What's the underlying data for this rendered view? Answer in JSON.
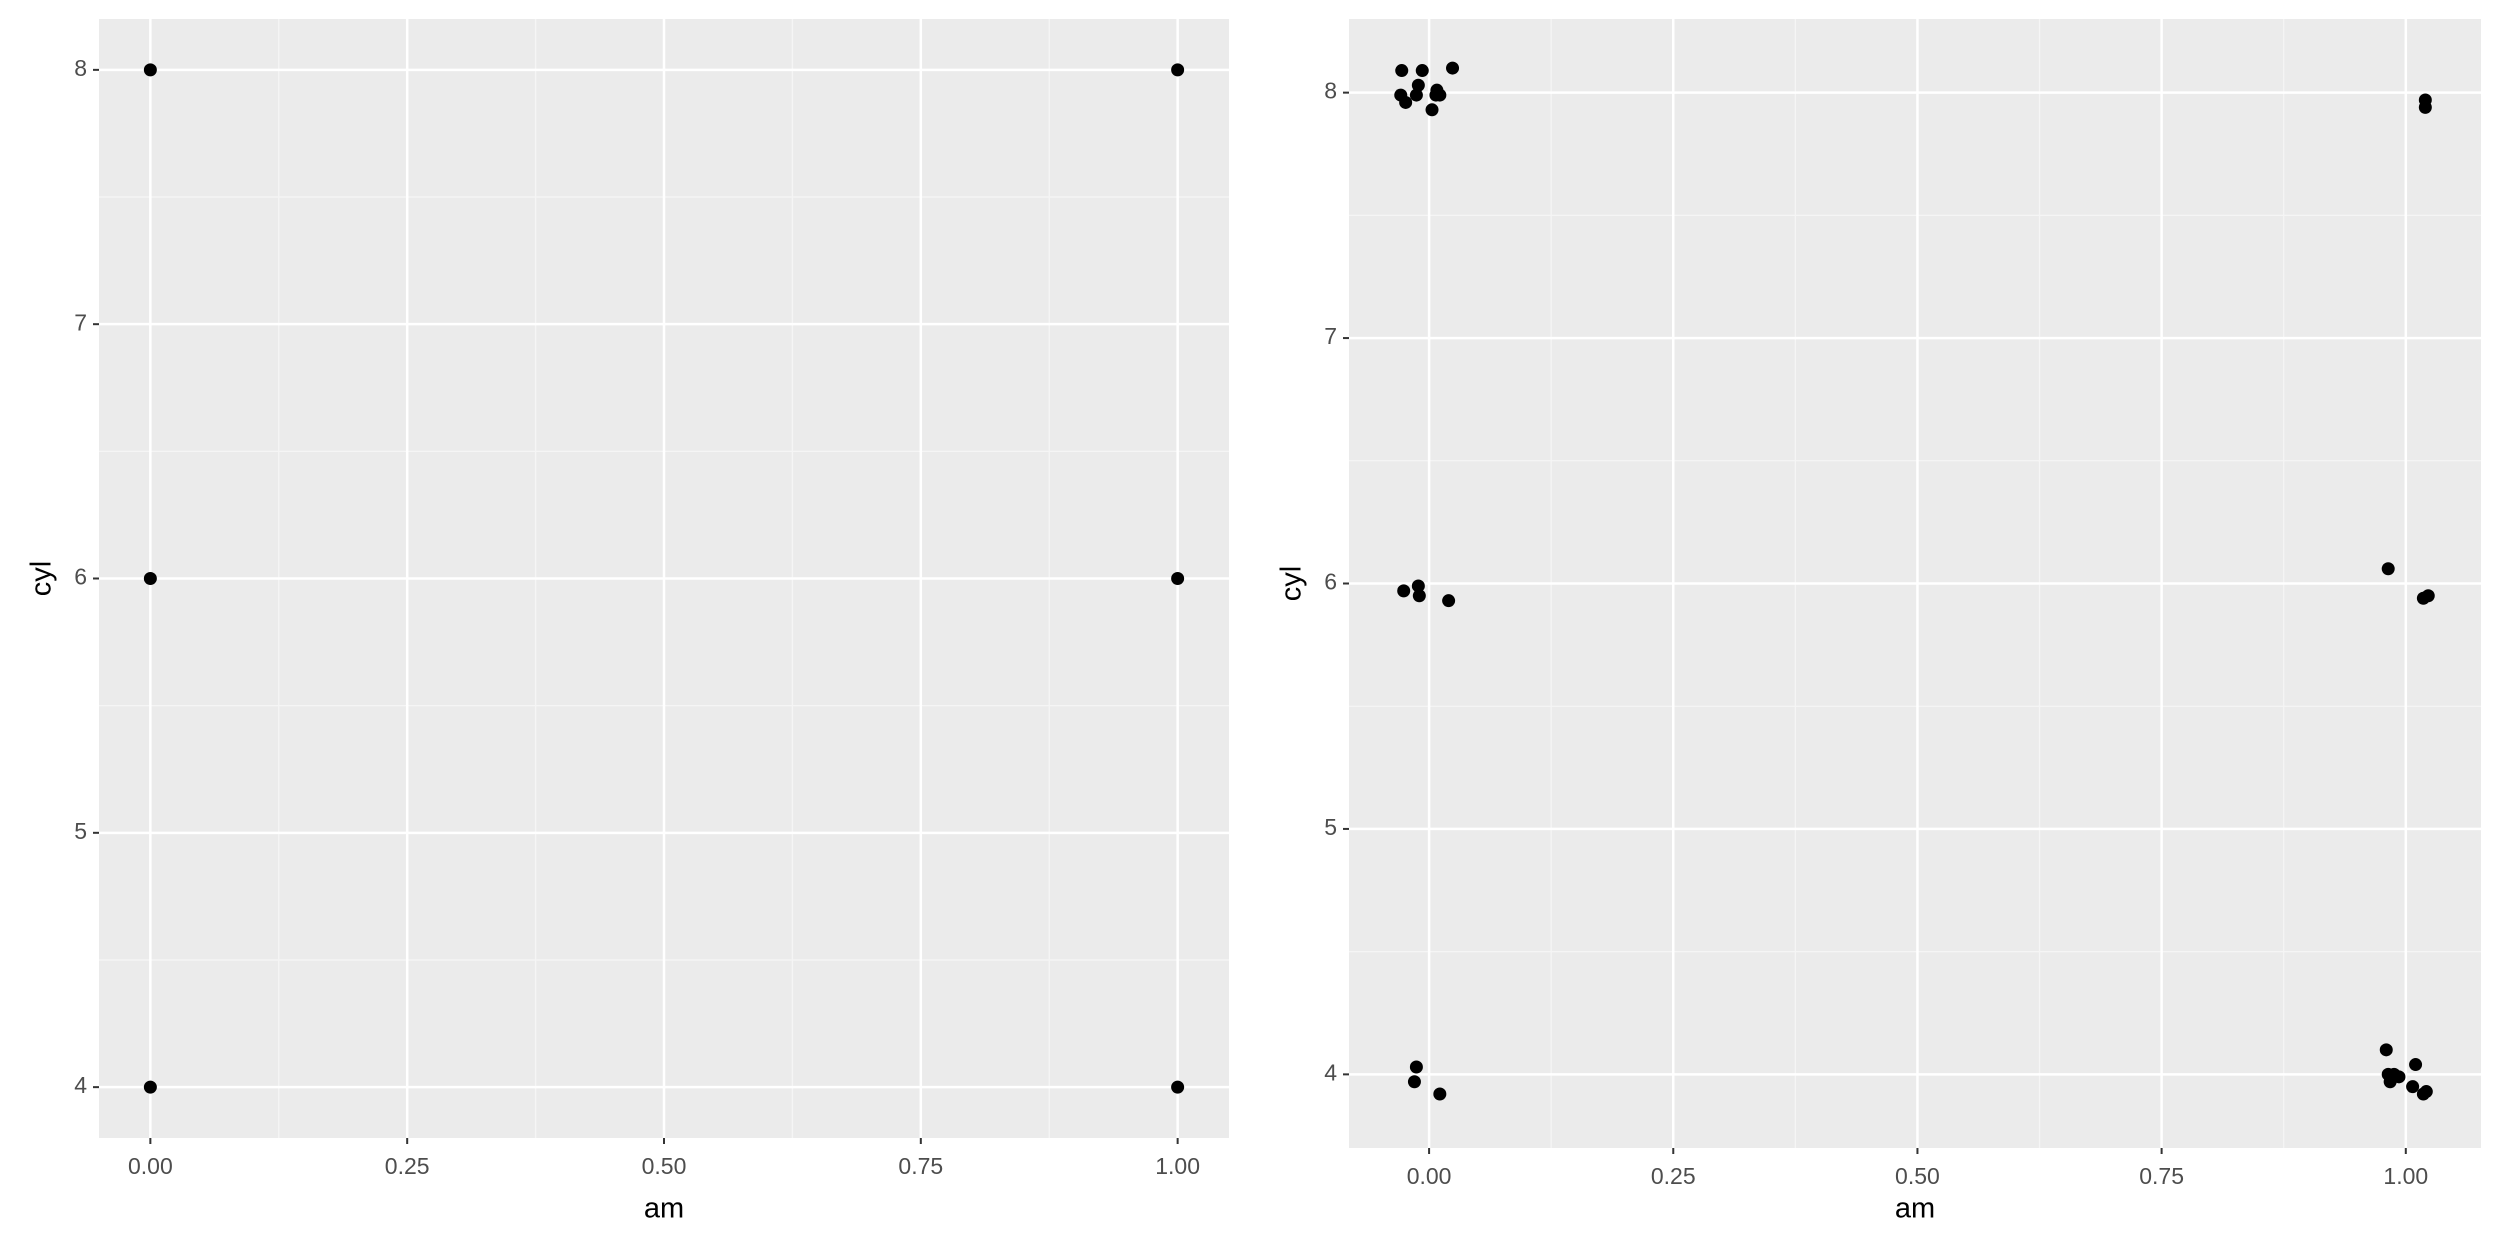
{
  "chart_data": [
    {
      "type": "scatter",
      "x_label": "am",
      "y_label": "cyl",
      "color": "#000000",
      "grid": true,
      "minor_grid": true,
      "x": [
        0,
        0,
        0,
        1,
        1,
        1
      ],
      "values": [
        8,
        6,
        4,
        8,
        6,
        4
      ],
      "xlim": [
        -0.05,
        1.05
      ],
      "ylim": [
        3.8,
        8.2
      ],
      "xticks": [
        {
          "value": 0,
          "label": "0.00"
        },
        {
          "value": 0.25,
          "label": "0.25"
        },
        {
          "value": 0.5,
          "label": "0.50"
        },
        {
          "value": 0.75,
          "label": "0.75"
        },
        {
          "value": 1,
          "label": "1.00"
        }
      ],
      "yticks": [
        4,
        5,
        6,
        7,
        8
      ]
    },
    {
      "type": "scatter",
      "x_label": "am",
      "y_label": "cyl",
      "color": "#000000",
      "grid": true,
      "minor_grid": true,
      "x": [
        -0.028,
        -0.029,
        -0.024,
        -0.011,
        -0.013,
        -0.007,
        0.003,
        0.007,
        0.011,
        0.024,
        0.008,
        1.02,
        1.02,
        -0.026,
        -0.011,
        -0.01,
        0.02,
        0.982,
        1.018,
        1.023,
        -0.013,
        -0.015,
        0.011,
        0.98,
        0.984,
        0.988,
        0.993,
        1.01,
        1.007,
        1.018,
        1.021,
        0.982
      ],
      "values": [
        8.09,
        7.99,
        7.96,
        8.03,
        7.99,
        8.09,
        7.93,
        7.99,
        7.99,
        8.1,
        8.01,
        7.97,
        7.94,
        5.97,
        5.99,
        5.95,
        5.93,
        6.06,
        5.94,
        5.95,
        4.03,
        3.97,
        3.92,
        4.1,
        3.97,
        4.0,
        3.99,
        4.04,
        3.95,
        3.92,
        3.93,
        4.0
      ],
      "xlim": [
        -0.082,
        1.077
      ],
      "ylim": [
        3.7,
        8.3
      ],
      "xticks": [
        {
          "value": 0,
          "label": "0.00"
        },
        {
          "value": 0.25,
          "label": "0.25"
        },
        {
          "value": 0.5,
          "label": "0.50"
        },
        {
          "value": 0.75,
          "label": "0.75"
        },
        {
          "value": 1,
          "label": "1.00"
        }
      ],
      "yticks": [
        4,
        5,
        6,
        7,
        8
      ]
    }
  ]
}
